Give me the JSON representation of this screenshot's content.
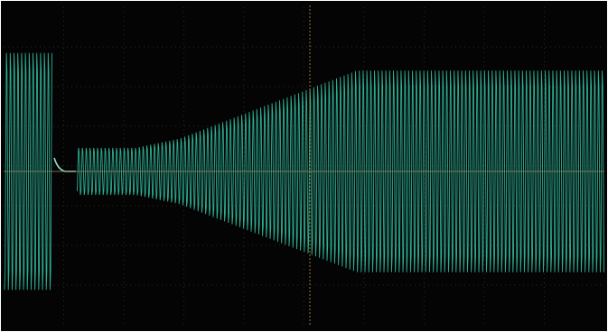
{
  "display": {
    "background_color": "#040404",
    "trace_color": "#2fb79a",
    "trace_highlight_color": "#8fe6cf",
    "grid_color": "#2a2a1e",
    "cursor_color": "#b58a3c",
    "horizontal_cursor_color": "#9a8a66",
    "grid_divisions_x": 10,
    "grid_divisions_y": 8
  },
  "signal": {
    "description_visible": false,
    "segments": [
      {
        "label": "",
        "amplitude_fraction": 0.78,
        "phase": "pre-dropout"
      },
      {
        "label": "",
        "amplitude_fraction": 0.0,
        "phase": "dropout"
      },
      {
        "label": "",
        "amplitude_fraction": 0.17,
        "phase": "restart-low"
      },
      {
        "label": "",
        "amplitude_fraction": 0.66,
        "phase": "ramp-to-steady"
      }
    ]
  }
}
